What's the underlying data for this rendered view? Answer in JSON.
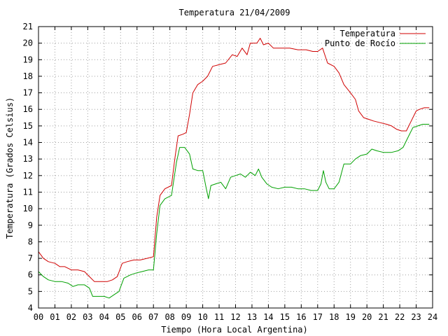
{
  "chart_data": {
    "type": "line",
    "title": "Temperatura 21/04/2009",
    "xlabel": "Tiempo (Hora Local Argentina)",
    "ylabel": "Temperatura (Grados Celsius)",
    "xlim": [
      0,
      24
    ],
    "ylim": [
      4,
      21
    ],
    "x_ticks": [
      "00",
      "01",
      "02",
      "03",
      "04",
      "05",
      "06",
      "07",
      "08",
      "09",
      "10",
      "11",
      "12",
      "13",
      "14",
      "15",
      "16",
      "17",
      "18",
      "19",
      "20",
      "21",
      "22",
      "23",
      "24"
    ],
    "y_ticks": [
      "4",
      "5",
      "6",
      "7",
      "8",
      "9",
      "10",
      "11",
      "12",
      "13",
      "14",
      "15",
      "16",
      "17",
      "18",
      "19",
      "20",
      "21"
    ],
    "grid": true,
    "legend_position": "top-right",
    "series": [
      {
        "name": "Temperatura",
        "color": "#d00000",
        "points": [
          [
            0.0,
            7.4
          ],
          [
            0.3,
            7.0
          ],
          [
            0.6,
            6.8
          ],
          [
            1.0,
            6.7
          ],
          [
            1.3,
            6.5
          ],
          [
            1.6,
            6.5
          ],
          [
            2.0,
            6.3
          ],
          [
            2.4,
            6.3
          ],
          [
            2.8,
            6.2
          ],
          [
            3.1,
            5.9
          ],
          [
            3.4,
            5.6
          ],
          [
            3.8,
            5.6
          ],
          [
            4.2,
            5.6
          ],
          [
            4.5,
            5.7
          ],
          [
            4.8,
            5.9
          ],
          [
            5.1,
            6.7
          ],
          [
            5.4,
            6.8
          ],
          [
            5.8,
            6.9
          ],
          [
            6.2,
            6.9
          ],
          [
            6.6,
            7.0
          ],
          [
            7.0,
            7.1
          ],
          [
            7.2,
            9.5
          ],
          [
            7.4,
            10.8
          ],
          [
            7.7,
            11.2
          ],
          [
            8.1,
            11.4
          ],
          [
            8.3,
            13.0
          ],
          [
            8.5,
            14.4
          ],
          [
            8.8,
            14.5
          ],
          [
            9.0,
            14.6
          ],
          [
            9.2,
            15.7
          ],
          [
            9.4,
            17.0
          ],
          [
            9.7,
            17.5
          ],
          [
            10.0,
            17.7
          ],
          [
            10.3,
            18.0
          ],
          [
            10.6,
            18.6
          ],
          [
            11.0,
            18.7
          ],
          [
            11.4,
            18.8
          ],
          [
            11.8,
            19.3
          ],
          [
            12.1,
            19.2
          ],
          [
            12.4,
            19.7
          ],
          [
            12.7,
            19.3
          ],
          [
            12.9,
            20.0
          ],
          [
            13.3,
            20.0
          ],
          [
            13.5,
            20.3
          ],
          [
            13.7,
            19.9
          ],
          [
            14.0,
            20.0
          ],
          [
            14.3,
            19.7
          ],
          [
            14.8,
            19.7
          ],
          [
            15.3,
            19.7
          ],
          [
            15.8,
            19.6
          ],
          [
            16.3,
            19.6
          ],
          [
            16.7,
            19.5
          ],
          [
            17.0,
            19.5
          ],
          [
            17.3,
            19.7
          ],
          [
            17.6,
            18.8
          ],
          [
            18.0,
            18.6
          ],
          [
            18.3,
            18.2
          ],
          [
            18.6,
            17.5
          ],
          [
            19.0,
            17.0
          ],
          [
            19.3,
            16.6
          ],
          [
            19.5,
            15.9
          ],
          [
            19.8,
            15.5
          ],
          [
            20.1,
            15.4
          ],
          [
            20.4,
            15.3
          ],
          [
            20.8,
            15.2
          ],
          [
            21.2,
            15.1
          ],
          [
            21.5,
            15.0
          ],
          [
            21.8,
            14.8
          ],
          [
            22.1,
            14.7
          ],
          [
            22.4,
            14.7
          ],
          [
            22.7,
            15.3
          ],
          [
            23.0,
            15.9
          ],
          [
            23.2,
            16.0
          ],
          [
            23.5,
            16.1
          ],
          [
            23.8,
            16.1
          ]
        ]
      },
      {
        "name": "Punto de Rocío",
        "color": "#00a000",
        "points": [
          [
            0.0,
            6.2
          ],
          [
            0.3,
            5.9
          ],
          [
            0.6,
            5.7
          ],
          [
            1.0,
            5.6
          ],
          [
            1.4,
            5.6
          ],
          [
            1.8,
            5.5
          ],
          [
            2.1,
            5.3
          ],
          [
            2.4,
            5.4
          ],
          [
            2.8,
            5.4
          ],
          [
            3.1,
            5.2
          ],
          [
            3.3,
            4.7
          ],
          [
            3.7,
            4.7
          ],
          [
            4.0,
            4.7
          ],
          [
            4.3,
            4.6
          ],
          [
            4.6,
            4.8
          ],
          [
            4.9,
            5.0
          ],
          [
            5.2,
            5.8
          ],
          [
            5.6,
            6.0
          ],
          [
            5.9,
            6.1
          ],
          [
            6.3,
            6.2
          ],
          [
            6.7,
            6.3
          ],
          [
            7.0,
            6.3
          ],
          [
            7.2,
            8.5
          ],
          [
            7.4,
            10.2
          ],
          [
            7.7,
            10.6
          ],
          [
            8.1,
            10.8
          ],
          [
            8.4,
            12.8
          ],
          [
            8.6,
            13.7
          ],
          [
            8.9,
            13.7
          ],
          [
            9.2,
            13.3
          ],
          [
            9.4,
            12.4
          ],
          [
            9.7,
            12.3
          ],
          [
            10.0,
            12.3
          ],
          [
            10.2,
            11.3
          ],
          [
            10.35,
            10.6
          ],
          [
            10.5,
            11.4
          ],
          [
            10.8,
            11.5
          ],
          [
            11.1,
            11.6
          ],
          [
            11.4,
            11.2
          ],
          [
            11.7,
            11.9
          ],
          [
            12.0,
            12.0
          ],
          [
            12.3,
            12.1
          ],
          [
            12.6,
            11.9
          ],
          [
            12.9,
            12.2
          ],
          [
            13.2,
            12.0
          ],
          [
            13.4,
            12.4
          ],
          [
            13.6,
            11.9
          ],
          [
            13.9,
            11.5
          ],
          [
            14.2,
            11.3
          ],
          [
            14.6,
            11.2
          ],
          [
            15.0,
            11.3
          ],
          [
            15.4,
            11.3
          ],
          [
            15.8,
            11.2
          ],
          [
            16.2,
            11.2
          ],
          [
            16.6,
            11.1
          ],
          [
            17.0,
            11.1
          ],
          [
            17.2,
            11.5
          ],
          [
            17.35,
            12.3
          ],
          [
            17.5,
            11.6
          ],
          [
            17.7,
            11.2
          ],
          [
            18.0,
            11.2
          ],
          [
            18.3,
            11.6
          ],
          [
            18.6,
            12.7
          ],
          [
            19.0,
            12.7
          ],
          [
            19.3,
            13.0
          ],
          [
            19.6,
            13.2
          ],
          [
            20.0,
            13.3
          ],
          [
            20.3,
            13.6
          ],
          [
            20.6,
            13.5
          ],
          [
            21.0,
            13.4
          ],
          [
            21.5,
            13.4
          ],
          [
            21.9,
            13.5
          ],
          [
            22.2,
            13.7
          ],
          [
            22.5,
            14.3
          ],
          [
            22.8,
            14.9
          ],
          [
            23.1,
            15.0
          ],
          [
            23.4,
            15.1
          ],
          [
            23.8,
            15.1
          ]
        ]
      }
    ]
  }
}
